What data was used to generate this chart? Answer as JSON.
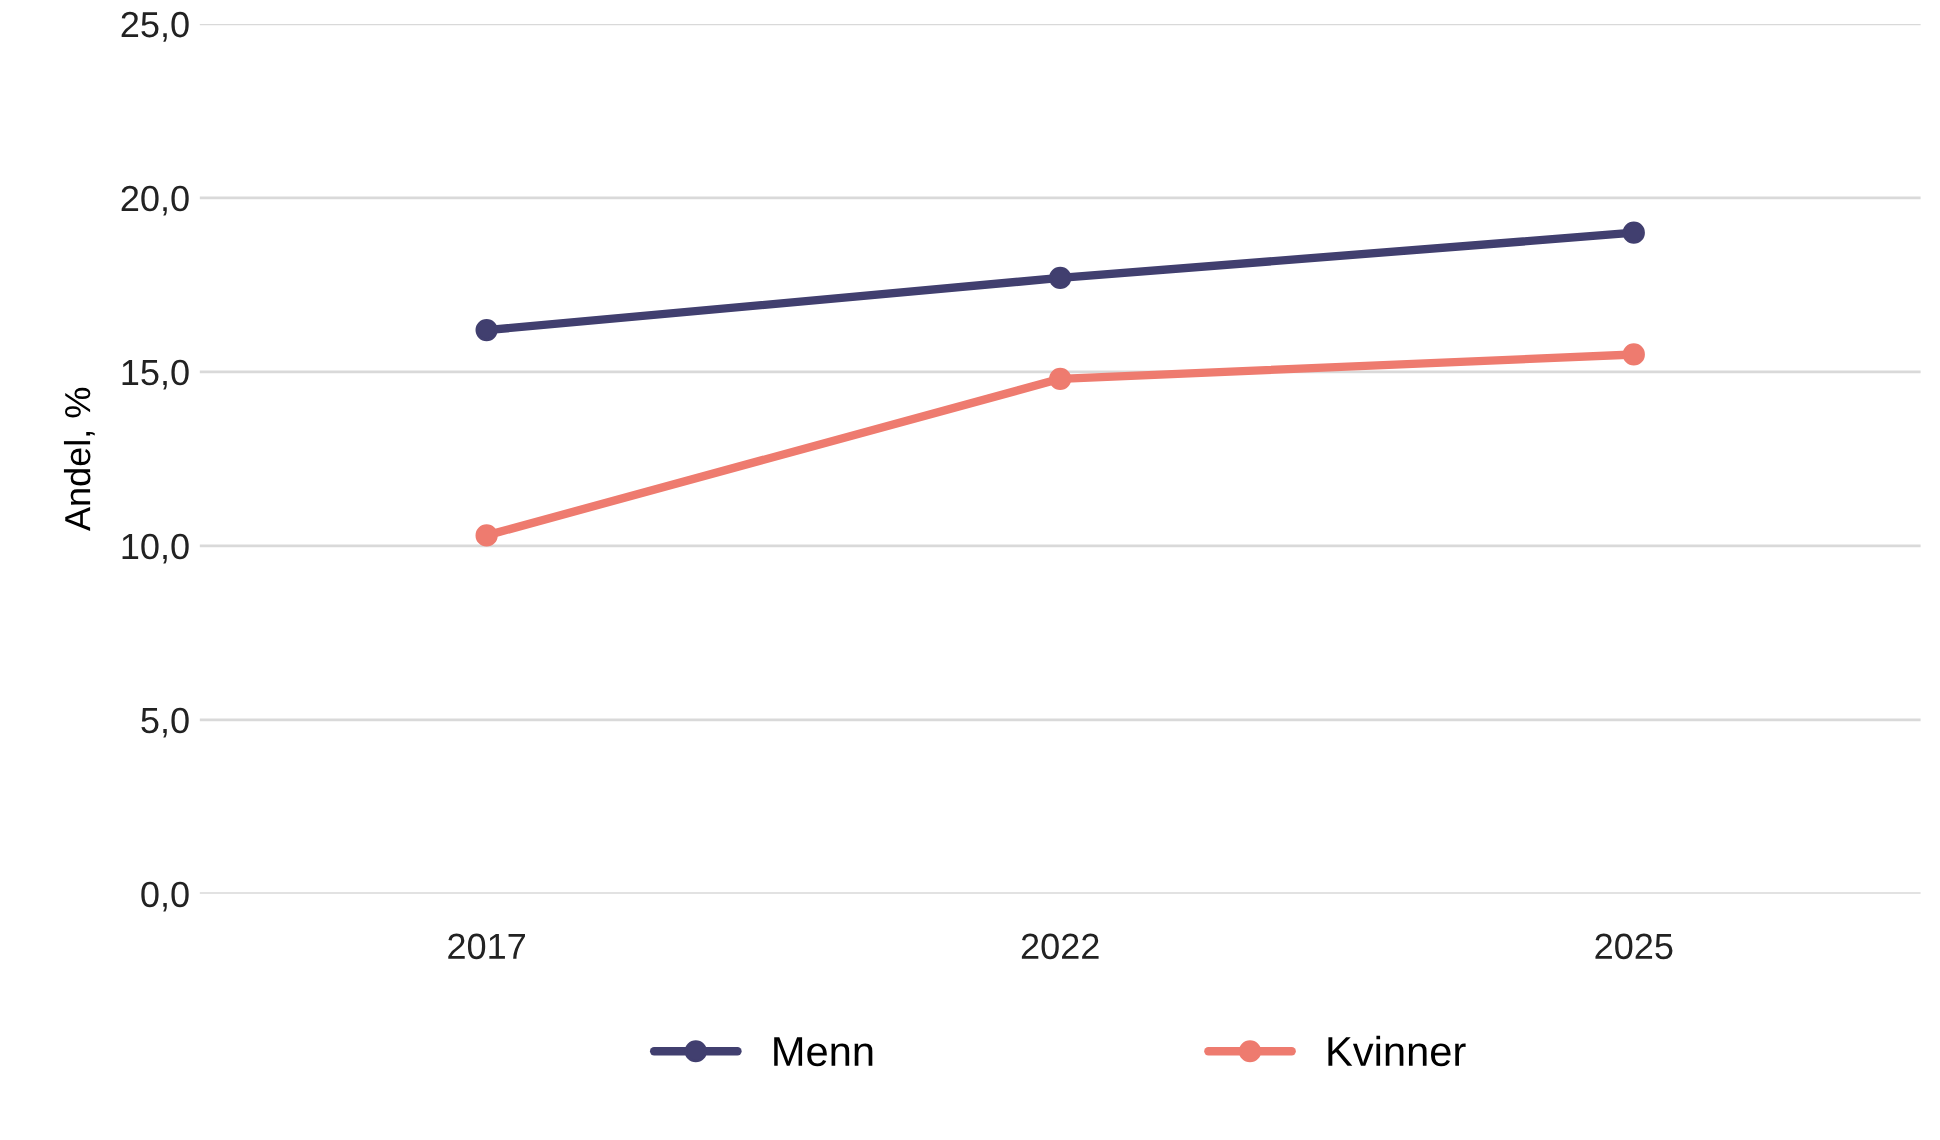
{
  "chart_data": {
    "type": "line",
    "ylabel": "Andel, %",
    "categories": [
      "2017",
      "2022",
      "2025"
    ],
    "series": [
      {
        "name": "Menn",
        "color": "#413f6f",
        "values": [
          16.2,
          17.7,
          19.0
        ]
      },
      {
        "name": "Kvinner",
        "color": "#ee7b6f",
        "values": [
          10.3,
          14.8,
          15.5
        ]
      }
    ],
    "ylim": [
      0,
      25
    ],
    "yticks": [
      {
        "value": 0,
        "label": "0,0"
      },
      {
        "value": 5,
        "label": "5,0"
      },
      {
        "value": 10,
        "label": "10,0"
      },
      {
        "value": 15,
        "label": "15,0"
      },
      {
        "value": 20,
        "label": "20,0"
      },
      {
        "value": 25,
        "label": "25,0"
      }
    ],
    "grid": "y",
    "legend": "bottom",
    "marker": "circle",
    "line_style": "solid"
  }
}
